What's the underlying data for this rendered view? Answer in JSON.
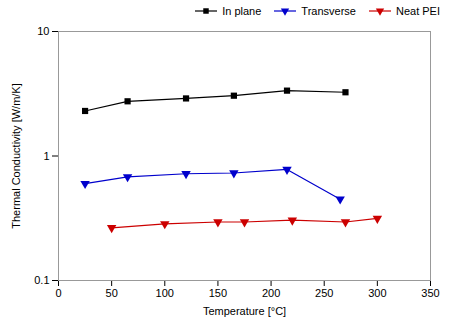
{
  "chart_data": {
    "type": "line",
    "xlabel": "Temperature [°C]",
    "ylabel": "Thermal Conductivity [W/m/K]",
    "log": "y",
    "xlim": [
      0,
      350
    ],
    "xticks": [
      0,
      50,
      100,
      150,
      200,
      250,
      300,
      350
    ],
    "ylim": [
      0.1,
      10
    ],
    "yticks": [
      0.1,
      1,
      10
    ],
    "grid": false,
    "legend": "upper right",
    "series": [
      {
        "name": "In plane",
        "color": "#000000",
        "marker": "square",
        "x": [
          25,
          65,
          120,
          165,
          215,
          270
        ],
        "values": [
          2.3,
          2.75,
          2.9,
          3.05,
          3.35,
          3.25
        ]
      },
      {
        "name": "Transverse",
        "color": "#0000cc",
        "marker": "triangle-down",
        "x": [
          25,
          65,
          120,
          165,
          215,
          265
        ],
        "values": [
          0.6,
          0.68,
          0.72,
          0.73,
          0.78,
          0.45
        ]
      },
      {
        "name": "Neat PEI",
        "color": "#cc0000",
        "marker": "triangle-down",
        "x": [
          50,
          100,
          150,
          175,
          220,
          270,
          300
        ],
        "values": [
          0.265,
          0.285,
          0.295,
          0.295,
          0.305,
          0.295,
          0.315
        ]
      }
    ]
  }
}
